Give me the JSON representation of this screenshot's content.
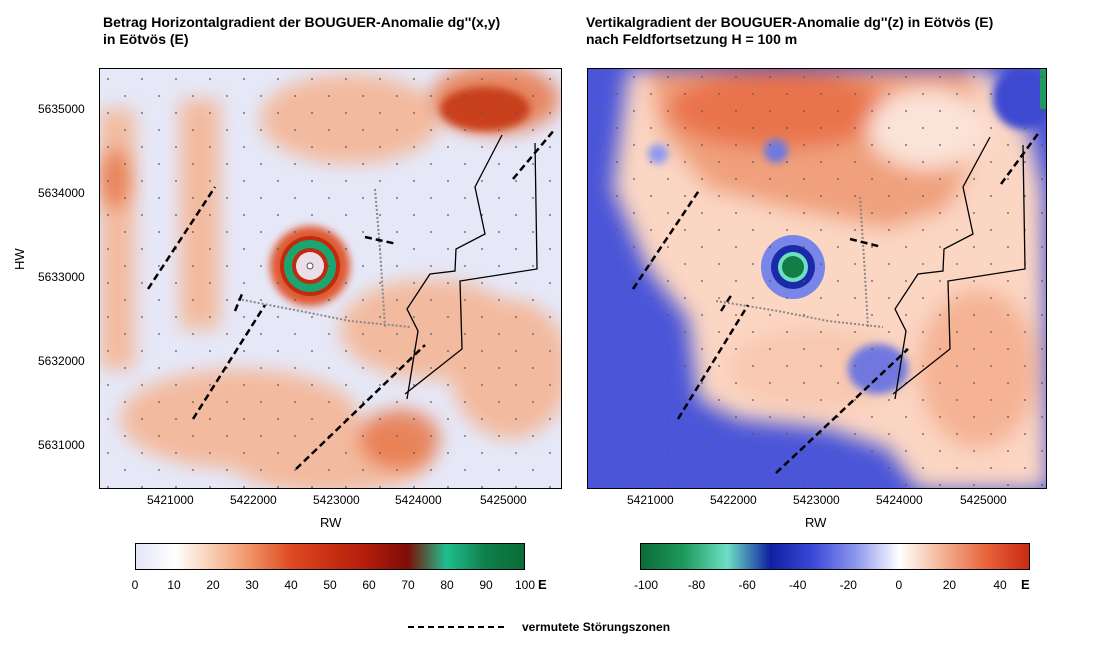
{
  "left_map": {
    "title_line1": "Betrag Horizontalgradient der BOUGUER-Anomalie dg''(x,y)",
    "title_line2": "in Eötvös (E)",
    "x_ticks": [
      "5421000",
      "5422000",
      "5423000",
      "5424000",
      "5425000"
    ],
    "y_ticks": [
      "5635000",
      "5634000",
      "5633000",
      "5632000",
      "5631000"
    ],
    "x_axis_label": "RW",
    "y_axis_label": "HW",
    "colorbar": {
      "ticks": [
        "0",
        "10",
        "20",
        "30",
        "40",
        "50",
        "60",
        "70",
        "80",
        "90",
        "100"
      ],
      "unit": "E",
      "colors": [
        "#e4e5f7",
        "#ffffff",
        "#f8cbad",
        "#ef8e62",
        "#de4a22",
        "#c82f12",
        "#b11c0c",
        "#7d0c07",
        "#1fbf8e",
        "#0f7f4c",
        "#0a6b36"
      ]
    }
  },
  "right_map": {
    "title_line1": "Vertikalgradient der BOUGUER-Anomalie dg''(z) in Eötvös (E)",
    "title_line2": "nach Feldfortsetzung H = 100 m",
    "x_ticks": [
      "5421000",
      "5422000",
      "5423000",
      "5424000",
      "5425000"
    ],
    "x_axis_label": "RW",
    "colorbar": {
      "ticks": [
        "-100",
        "-80",
        "-60",
        "-40",
        "-20",
        "0",
        "20",
        "40"
      ],
      "unit": "E",
      "colors": [
        "#0a6b36",
        "#1f9a5c",
        "#6de0c4",
        "#1020a0",
        "#3b49d8",
        "#8f98ee",
        "#ffffff",
        "#f3b294",
        "#e8643c",
        "#c92a12"
      ]
    }
  },
  "legend": {
    "label": "vermutete Störungszonen"
  }
}
